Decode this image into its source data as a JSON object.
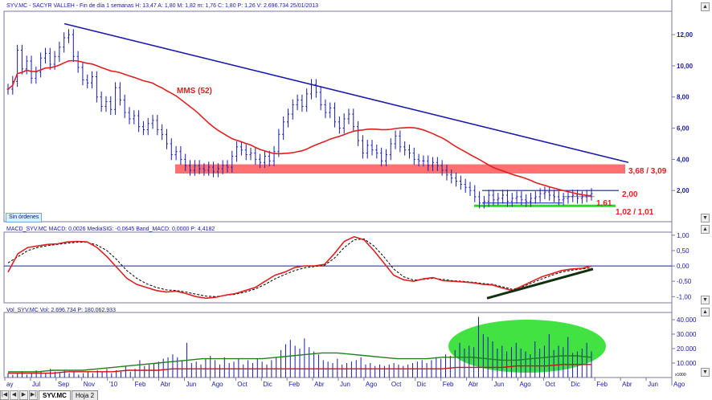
{
  "header": {
    "price_info": "SYV.MC - SACYR VALLEH - Fin de día 1 semanas  H: 13,47  A: 1,80  M: 1,82  m: 1,76  C: 1,80  P: 1,26  V: 2.696.734  25/01/2013",
    "macd_info": "MACD_SYV.MC  MACD: 0,0026  MediaSIG: -0,0645  Band_MACD: 0,0000  P: 4,4182",
    "vol_info": "Vol_SYV.MC  Vol: 2.696.734  P: 180.062.933"
  },
  "status_badge": "Sin órdenes",
  "tabs": [
    "SYV.MC",
    "Hoja 2"
  ],
  "nav_buttons": [
    "|◀",
    "◀",
    "▶",
    "▶|"
  ],
  "x_ticks": [
    "ay",
    "Jul",
    "Sep",
    "Nov",
    "'10",
    "Feb",
    "Abr",
    "Jun",
    "Ago",
    "Oct",
    "Dic",
    "Feb",
    "Abr",
    "Jun",
    "Ago",
    "Oct",
    "Dic",
    "Feb",
    "Abr",
    "Jun",
    "Ago",
    "Oct",
    "Dic",
    "Feb",
    "Abr",
    "Jun",
    "Ago"
  ],
  "colors": {
    "bars": "#1a1ab0",
    "ma": "#e02020",
    "trend": "#1a1ab0",
    "support_band": "#ff7070",
    "green": "#22dd22",
    "macd": "#e02020",
    "signal": "#000000",
    "vol_ma_long": "#208020",
    "vol_ma_short": "#d01010",
    "axis_text": "#1a1aa0"
  },
  "chart_data": [
    {
      "type": "ohlc",
      "title": "SYV.MC - SACYR VALLEH",
      "y_ticks": [
        "12,00",
        "10,00",
        "8,00",
        "6,00",
        "4,00",
        "2,00"
      ],
      "y_ticks_values": [
        12,
        10,
        8,
        6,
        4,
        2
      ],
      "ylim": [
        0,
        13.5
      ],
      "series": [
        {
          "name": "price",
          "close": [
            8.5,
            9.0,
            11.0,
            9.8,
            10.3,
            9.2,
            9.6,
            10.5,
            10.8,
            10.1,
            10.6,
            11.2,
            11.8,
            12.0,
            10.6,
            9.9,
            9.1,
            8.9,
            9.3,
            8.0,
            7.4,
            7.7,
            7.2,
            8.6,
            7.8,
            7.0,
            6.6,
            6.8,
            6.1,
            5.9,
            6.3,
            6.5,
            5.9,
            5.6,
            5.0,
            4.3,
            4.5,
            4.0,
            3.6,
            3.3,
            3.6,
            3.4,
            3.3,
            3.5,
            3.2,
            3.4,
            3.6,
            3.5,
            4.2,
            4.8,
            4.6,
            4.3,
            4.4,
            4.0,
            3.8,
            4.2,
            3.9,
            4.5,
            5.6,
            6.4,
            6.9,
            7.5,
            7.8,
            7.4,
            8.2,
            8.8,
            8.3,
            7.5,
            7.0,
            7.3,
            6.4,
            6.0,
            6.6,
            6.9,
            6.1,
            5.2,
            4.4,
            4.9,
            4.6,
            4.4,
            3.9,
            4.3,
            5.0,
            5.5,
            4.8,
            4.6,
            4.4,
            4.0,
            3.9,
            3.9,
            3.6,
            3.8,
            3.6,
            3.3,
            3.0,
            2.8,
            2.6,
            2.4,
            2.2,
            2.0,
            1.6,
            1.2,
            1.3,
            1.7,
            1.4,
            1.5,
            1.7,
            1.3,
            1.5,
            1.6,
            1.4,
            1.3,
            1.5,
            1.6,
            1.8,
            1.9,
            1.7,
            1.6,
            1.4,
            1.5,
            1.6,
            1.7,
            1.5,
            1.6,
            1.7,
            1.8
          ]
        },
        {
          "name": "MMS (52)",
          "values_labeled": true
        }
      ],
      "annotations": [
        "MMS (52)",
        "3,68 / 3,09",
        "2,00",
        "1,61",
        "1,02 / 1,01"
      ]
    },
    {
      "type": "line",
      "title": "MACD_SYV.MC",
      "y_ticks": [
        "1,00",
        "0,50",
        "0,00",
        "-0,50",
        "-1,00"
      ],
      "ylim": [
        -1.2,
        1.1
      ],
      "series": [
        {
          "name": "MACD",
          "values": [
            -0.2,
            0.4,
            0.6,
            0.65,
            0.7,
            0.72,
            0.78,
            0.8,
            0.78,
            0.6,
            0.3,
            -0.05,
            -0.4,
            -0.6,
            -0.7,
            -0.8,
            -0.85,
            -0.82,
            -0.9,
            -1.0,
            -1.05,
            -1.02,
            -0.95,
            -0.9,
            -0.8,
            -0.7,
            -0.5,
            -0.3,
            -0.2,
            -0.05,
            0.0,
            0.0,
            0.05,
            0.4,
            0.8,
            0.95,
            0.85,
            0.5,
            0.1,
            -0.3,
            -0.45,
            -0.5,
            -0.42,
            -0.38,
            -0.48,
            -0.5,
            -0.52,
            -0.55,
            -0.6,
            -0.62,
            -0.72,
            -0.8,
            -0.65,
            -0.5,
            -0.35,
            -0.25,
            -0.15,
            -0.1,
            -0.08,
            0.0
          ]
        },
        {
          "name": "MediaSIG",
          "values": [
            0.1,
            0.3,
            0.5,
            0.6,
            0.66,
            0.7,
            0.74,
            0.77,
            0.77,
            0.68,
            0.5,
            0.2,
            -0.15,
            -0.4,
            -0.58,
            -0.7,
            -0.78,
            -0.8,
            -0.85,
            -0.92,
            -0.98,
            -1.0,
            -0.96,
            -0.92,
            -0.85,
            -0.75,
            -0.6,
            -0.42,
            -0.28,
            -0.15,
            -0.06,
            -0.02,
            0.02,
            0.25,
            0.6,
            0.85,
            0.88,
            0.65,
            0.3,
            -0.1,
            -0.35,
            -0.46,
            -0.44,
            -0.4,
            -0.44,
            -0.48,
            -0.5,
            -0.53,
            -0.57,
            -0.6,
            -0.68,
            -0.76,
            -0.68,
            -0.55,
            -0.42,
            -0.3,
            -0.2,
            -0.14,
            -0.1,
            -0.06
          ]
        }
      ]
    },
    {
      "type": "bar",
      "title": "Vol_SYV.MC",
      "y_ticks": [
        "40.000",
        "30.000",
        "20.000",
        "10.000"
      ],
      "y_unit": "x1000",
      "ylim": [
        0,
        45000
      ],
      "series": [
        {
          "name": "Vol",
          "values": [
            3,
            2,
            3,
            4,
            2,
            3,
            5,
            4,
            3,
            6,
            4,
            3,
            5,
            3,
            4,
            2,
            3,
            4,
            3,
            5,
            4,
            6,
            3,
            5,
            4,
            8,
            4,
            6,
            12,
            8,
            9,
            10,
            11,
            13,
            14,
            16,
            14,
            12,
            24,
            10,
            11,
            9,
            13,
            15,
            12,
            9,
            14,
            10,
            11,
            13,
            9,
            12,
            10,
            13,
            11,
            9,
            12,
            14,
            19,
            23,
            26,
            22,
            20,
            27,
            21,
            18,
            16,
            12,
            11,
            10,
            13,
            9,
            10,
            11,
            12,
            14,
            9,
            10,
            8,
            9,
            8,
            9,
            10,
            9,
            8,
            9,
            10,
            11,
            12,
            10,
            12,
            14,
            13,
            16,
            15,
            19,
            24,
            20,
            22,
            21,
            42,
            30,
            28,
            25,
            20,
            22,
            18,
            21,
            24,
            20,
            18,
            16,
            25,
            20,
            22,
            30,
            19,
            22,
            21,
            28,
            17,
            18,
            20,
            24,
            18
          ]
        },
        {
          "name": "MA long",
          "values": [
            4,
            4,
            4,
            5,
            5,
            5,
            6,
            7,
            8,
            9,
            10,
            11,
            12,
            13,
            13,
            13,
            13,
            13,
            14,
            15,
            16,
            17,
            17,
            16,
            15,
            14,
            13,
            13,
            13,
            14,
            14,
            14,
            13,
            12,
            12,
            13,
            14,
            15,
            15,
            14
          ]
        },
        {
          "name": "MA short",
          "values": [
            3,
            3,
            3,
            3,
            4,
            4,
            4,
            4,
            5,
            5,
            5,
            6,
            6,
            6,
            6,
            6,
            6,
            6,
            6,
            6,
            6,
            6,
            6,
            6,
            6,
            6,
            6,
            6,
            6,
            6,
            7,
            7,
            7,
            7,
            8,
            8,
            8,
            9,
            9,
            9
          ]
        }
      ]
    }
  ]
}
